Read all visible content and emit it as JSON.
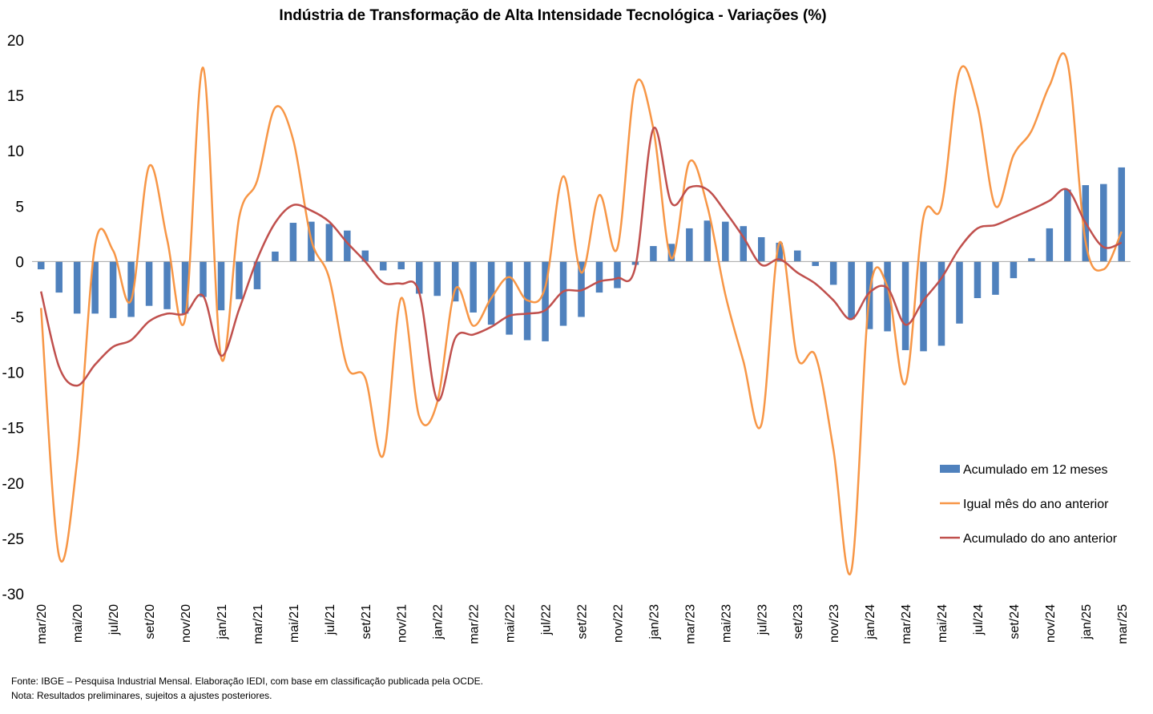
{
  "chart_data": {
    "type": "bar+line",
    "title": "Indústria de Transformação de Alta Intensidade Tecnológica - Variações (%)",
    "xlabel": "",
    "ylabel": "",
    "ylim": [
      -30,
      20
    ],
    "yticks": [
      20,
      15,
      10,
      5,
      0,
      -5,
      -10,
      -15,
      -20,
      -25,
      -30
    ],
    "grid": false,
    "legend_position": "right",
    "categories": [
      "mar/20",
      "abr/20",
      "mai/20",
      "jun/20",
      "jul/20",
      "ago/20",
      "set/20",
      "out/20",
      "nov/20",
      "dez/20",
      "jan/21",
      "fev/21",
      "mar/21",
      "abr/21",
      "mai/21",
      "jun/21",
      "jul/21",
      "ago/21",
      "set/21",
      "out/21",
      "nov/21",
      "dez/21",
      "jan/22",
      "fev/22",
      "mar/22",
      "abr/22",
      "mai/22",
      "jun/22",
      "jul/22",
      "ago/22",
      "set/22",
      "out/22",
      "nov/22",
      "dez/22",
      "jan/23",
      "fev/23",
      "mar/23",
      "abr/23",
      "mai/23",
      "jun/23",
      "jul/23",
      "ago/23",
      "set/23",
      "out/23",
      "nov/23",
      "dez/23",
      "jan/24",
      "fev/24",
      "mar/24",
      "abr/24",
      "mai/24",
      "jun/24",
      "jul/24",
      "ago/24",
      "set/24",
      "out/24",
      "nov/24",
      "dez/24",
      "jan/25",
      "fev/25",
      "mar/25"
    ],
    "tick_labels": [
      "mar/20",
      "",
      "mai/20",
      "",
      "jul/20",
      "",
      "set/20",
      "",
      "nov/20",
      "",
      "jan/21",
      "",
      "mar/21",
      "",
      "mai/21",
      "",
      "jul/21",
      "",
      "set/21",
      "",
      "nov/21",
      "",
      "jan/22",
      "",
      "mar/22",
      "",
      "mai/22",
      "",
      "jul/22",
      "",
      "set/22",
      "",
      "nov/22",
      "",
      "jan/23",
      "",
      "mar/23",
      "",
      "mai/23",
      "",
      "jul/23",
      "",
      "set/23",
      "",
      "nov/23",
      "",
      "jan/24",
      "",
      "mar/24",
      "",
      "mai/24",
      "",
      "jul/24",
      "",
      "set/24",
      "",
      "nov/24",
      "",
      "jan/25",
      "",
      "mar/25"
    ],
    "series": [
      {
        "name": "Acumulado em 12 meses",
        "type": "bar",
        "color": "#4f81bd",
        "values": [
          -0.7,
          -2.8,
          -4.7,
          -4.7,
          -5.1,
          -5.0,
          -4.0,
          -4.3,
          -4.7,
          -3.2,
          -4.4,
          -3.4,
          -2.5,
          0.9,
          3.5,
          3.6,
          3.4,
          2.8,
          1.0,
          -0.8,
          -0.7,
          -2.9,
          -3.1,
          -3.6,
          -4.6,
          -5.7,
          -6.6,
          -7.1,
          -7.2,
          -5.8,
          -5.0,
          -2.8,
          -2.4,
          -0.3,
          1.4,
          1.6,
          3.0,
          3.7,
          3.6,
          3.2,
          2.2,
          1.7,
          1.0,
          -0.4,
          -2.1,
          -5.2,
          -6.1,
          -6.3,
          -8.0,
          -8.1,
          -7.6,
          -5.6,
          -3.3,
          -3.0,
          -1.5,
          0.3,
          3.0,
          6.5,
          6.9,
          7.0,
          8.5
        ]
      },
      {
        "name": "Igual mês do ano anterior",
        "type": "line",
        "color": "#f79646",
        "values": [
          -4.2,
          -26.6,
          -18.0,
          1.5,
          1.0,
          -3.5,
          8.6,
          2.0,
          -5.2,
          17.5,
          -8.7,
          4.0,
          7.3,
          13.9,
          11.0,
          2.0,
          -1.5,
          -9.5,
          -10.5,
          -17.5,
          -3.3,
          -14.0,
          -12.7,
          -2.5,
          -5.8,
          -3.3,
          -1.4,
          -3.5,
          -2.3,
          7.7,
          -1.0,
          6.0,
          1.2,
          15.9,
          12.0,
          0.3,
          9.0,
          5.0,
          -3.0,
          -9.0,
          -14.7,
          1.7,
          -8.7,
          -8.5,
          -17.0,
          -27.9,
          -3.0,
          -2.3,
          -11.0,
          4.0,
          5.0,
          17.2,
          14.0,
          5.0,
          9.6,
          11.8,
          15.9,
          18.0,
          1.8,
          -0.7,
          2.7
        ]
      },
      {
        "name": "Acumulado do ano anterior",
        "type": "line",
        "color": "#c0504d",
        "values": [
          -2.7,
          -9.5,
          -11.2,
          -9.3,
          -7.7,
          -7.1,
          -5.4,
          -4.7,
          -4.7,
          -3.1,
          -8.5,
          -4.3,
          0.2,
          3.5,
          5.1,
          4.6,
          3.6,
          1.7,
          0.0,
          -1.9,
          -2.0,
          -2.8,
          -12.5,
          -6.9,
          -6.6,
          -5.9,
          -4.9,
          -4.7,
          -4.4,
          -2.7,
          -2.6,
          -1.8,
          -1.5,
          -0.5,
          12.0,
          5.3,
          6.7,
          6.5,
          4.5,
          2.2,
          -0.3,
          0.2,
          -1.0,
          -2.0,
          -3.5,
          -5.2,
          -2.8,
          -2.4,
          -5.7,
          -3.5,
          -1.5,
          1.2,
          3.0,
          3.3,
          4.0,
          4.7,
          5.5,
          6.5,
          3.5,
          1.3,
          1.7
        ]
      }
    ]
  },
  "footnotes": {
    "source": "Fonte: IBGE – Pesquisa Industrial Mensal. Elaboração IEDI, com base em classificação publicada pela OCDE.",
    "note": "Nota: Resultados preliminares, sujeitos a ajustes posteriores."
  }
}
